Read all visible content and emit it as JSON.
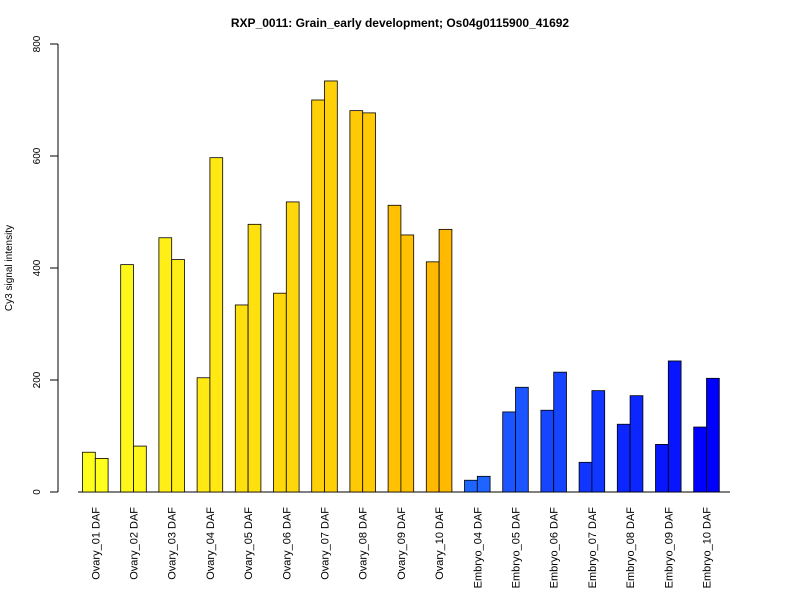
{
  "chart_data": {
    "type": "bar",
    "title": "RXP_0011: Grain_early development; Os04g0115900_41692",
    "xlabel": "",
    "ylabel": "Cy3 signal intensity",
    "ylim": [
      0,
      800
    ],
    "yticks": [
      0,
      200,
      400,
      600,
      800
    ],
    "grid": false,
    "categories": [
      "Ovary_01 DAF",
      "Ovary_02 DAF",
      "Ovary_03 DAF",
      "Ovary_04 DAF",
      "Ovary_05 DAF",
      "Ovary_06 DAF",
      "Ovary_07 DAF",
      "Ovary_08 DAF",
      "Ovary_09 DAF",
      "Ovary_10 DAF",
      "Embryo_04 DAF",
      "Embryo_05 DAF",
      "Embryo_06 DAF",
      "Embryo_07 DAF",
      "Embryo_08 DAF",
      "Embryo_09 DAF",
      "Embryo_10 DAF"
    ],
    "series": [
      {
        "values": [
          71,
          406,
          454,
          204,
          334,
          355,
          700,
          681,
          512,
          411,
          21,
          143,
          146,
          53,
          121,
          85,
          116
        ]
      },
      {
        "values": [
          60,
          82,
          415,
          597,
          478,
          518,
          734,
          677,
          459,
          469,
          28,
          187,
          214,
          181,
          172,
          234,
          203
        ]
      }
    ],
    "colors": [
      "#FFFF1E",
      "#FFF71A",
      "#FFEF17",
      "#FFE813",
      "#FFE00F",
      "#FFD80C",
      "#FFD008",
      "#FFC904",
      "#FFC101",
      "#FFB900",
      "#1E64FF",
      "#1A55FF",
      "#1545FF",
      "#1136FF",
      "#0C26FF",
      "#0816FF",
      "#0000FF"
    ]
  }
}
